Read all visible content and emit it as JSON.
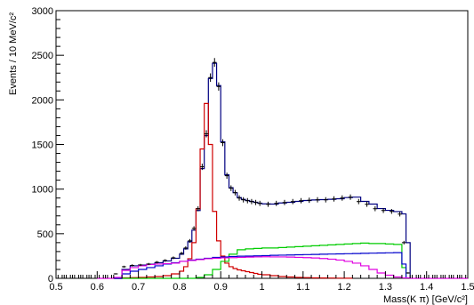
{
  "chart_data": {
    "type": "line",
    "title": "",
    "xlabel": "Mass(K π)  [GeV/c²]",
    "ylabel": "Events / 10 MeV/c²",
    "xlim": [
      0.5,
      1.5
    ],
    "ylim": [
      0,
      3000
    ],
    "x_ticks": [
      "0.5",
      "0.6",
      "0.7",
      "0.8",
      "0.9",
      "1",
      "1.1",
      "1.2",
      "1.3",
      "1.4",
      "1.5"
    ],
    "y_ticks": [
      "0",
      "500",
      "1000",
      "1500",
      "2000",
      "2500",
      "3000"
    ],
    "grid": false,
    "legend": "none",
    "data_points": {
      "x": [
        0.645,
        0.665,
        0.685,
        0.705,
        0.725,
        0.745,
        0.765,
        0.785,
        0.805,
        0.815,
        0.825,
        0.835,
        0.845,
        0.855,
        0.865,
        0.875,
        0.885,
        0.895,
        0.905,
        0.915,
        0.925,
        0.935,
        0.945,
        0.955,
        0.965,
        0.975,
        0.985,
        0.995,
        1.015,
        1.035,
        1.055,
        1.075,
        1.095,
        1.115,
        1.135,
        1.155,
        1.175,
        1.195,
        1.215,
        1.235,
        1.255,
        1.275,
        1.295,
        1.315,
        1.335,
        1.345,
        1.355
      ],
      "y": [
        50,
        130,
        145,
        150,
        160,
        180,
        200,
        230,
        280,
        340,
        420,
        560,
        780,
        1250,
        1620,
        2250,
        2420,
        2150,
        1520,
        1150,
        1010,
        960,
        900,
        880,
        870,
        860,
        850,
        840,
        830,
        840,
        850,
        860,
        870,
        875,
        880,
        880,
        890,
        900,
        910,
        860,
        830,
        780,
        760,
        750,
        720,
        400,
        60
      ]
    },
    "series": [
      {
        "color": "#000080",
        "x": [
          0.64,
          0.66,
          0.68,
          0.7,
          0.72,
          0.74,
          0.76,
          0.78,
          0.8,
          0.81,
          0.82,
          0.83,
          0.84,
          0.85,
          0.86,
          0.87,
          0.88,
          0.89,
          0.9,
          0.91,
          0.92,
          0.93,
          0.94,
          0.95,
          0.96,
          0.97,
          0.98,
          0.99,
          1.0,
          1.02,
          1.04,
          1.06,
          1.08,
          1.1,
          1.12,
          1.14,
          1.16,
          1.18,
          1.2,
          1.22,
          1.24,
          1.26,
          1.28,
          1.3,
          1.32,
          1.34,
          1.35,
          1.36
        ],
        "y": [
          0,
          100,
          140,
          148,
          158,
          175,
          195,
          225,
          270,
          330,
          410,
          540,
          760,
          1230,
          1600,
          2240,
          2410,
          2160,
          1530,
          1160,
          1015,
          960,
          905,
          885,
          872,
          862,
          852,
          842,
          835,
          832,
          845,
          852,
          862,
          872,
          878,
          882,
          886,
          892,
          905,
          910,
          862,
          832,
          782,
          762,
          748,
          722,
          400,
          0
        ]
      },
      {
        "color": "#d00000",
        "x": [
          0.64,
          0.66,
          0.68,
          0.7,
          0.72,
          0.74,
          0.76,
          0.78,
          0.8,
          0.81,
          0.82,
          0.83,
          0.84,
          0.85,
          0.86,
          0.87,
          0.88,
          0.89,
          0.9,
          0.91,
          0.92,
          0.93,
          0.94,
          0.95,
          0.96,
          0.97,
          0.98,
          0.99,
          1.0,
          1.02,
          1.04,
          1.06,
          1.08,
          1.1,
          1.12,
          1.14,
          1.16,
          1.18,
          1.2,
          1.22
        ],
        "y": [
          0,
          5,
          8,
          10,
          15,
          20,
          30,
          50,
          80,
          130,
          220,
          400,
          780,
          1450,
          1960,
          1500,
          750,
          420,
          250,
          170,
          130,
          110,
          95,
          85,
          75,
          65,
          55,
          45,
          40,
          30,
          20,
          15,
          10,
          8,
          5,
          4,
          3,
          2,
          1,
          0
        ]
      },
      {
        "color": "#00cc00",
        "x": [
          0.64,
          0.82,
          0.84,
          0.86,
          0.88,
          0.9,
          0.92,
          0.94,
          0.96,
          0.98,
          1.0,
          1.02,
          1.04,
          1.06,
          1.08,
          1.1,
          1.12,
          1.14,
          1.16,
          1.18,
          1.2,
          1.22,
          1.24,
          1.26,
          1.28,
          1.3,
          1.32,
          1.34,
          1.35
        ],
        "y": [
          0,
          0,
          10,
          40,
          100,
          190,
          270,
          320,
          330,
          335,
          340,
          340,
          345,
          350,
          355,
          360,
          365,
          370,
          375,
          380,
          385,
          390,
          395,
          390,
          390,
          385,
          380,
          120,
          0
        ]
      },
      {
        "color": "#0000cc",
        "x": [
          0.64,
          0.66,
          0.68,
          0.7,
          0.72,
          0.74,
          0.76,
          0.78,
          0.8,
          0.82,
          0.84,
          0.86,
          0.88,
          0.9,
          0.92,
          0.94,
          0.96,
          0.98,
          1.0,
          1.02,
          1.04,
          1.06,
          1.08,
          1.1,
          1.12,
          1.14,
          1.16,
          1.18,
          1.2,
          1.22,
          1.24,
          1.26,
          1.28,
          1.3,
          1.32,
          1.34,
          1.35
        ],
        "y": [
          0,
          50,
          80,
          100,
          120,
          140,
          160,
          175,
          190,
          205,
          215,
          225,
          235,
          240,
          245,
          248,
          250,
          252,
          255,
          258,
          260,
          262,
          264,
          266,
          268,
          270,
          272,
          274,
          276,
          278,
          280,
          282,
          284,
          286,
          288,
          160,
          0
        ]
      },
      {
        "color": "#e000e0",
        "x": [
          0.6,
          0.62,
          0.64,
          0.66,
          0.68,
          0.7,
          0.72,
          0.74,
          0.76,
          0.78,
          0.8,
          0.82,
          0.84,
          0.86,
          0.88,
          0.9,
          0.92,
          0.94,
          0.96,
          0.98,
          1.0,
          1.02,
          1.04,
          1.06,
          1.08,
          1.1,
          1.12,
          1.14,
          1.16,
          1.18,
          1.2,
          1.22,
          1.24,
          1.26,
          1.28,
          1.3,
          1.32,
          1.34,
          1.36,
          1.38,
          1.4,
          1.45,
          1.5
        ],
        "y": [
          0,
          0,
          10,
          90,
          120,
          140,
          155,
          160,
          165,
          170,
          190,
          200,
          210,
          220,
          225,
          230,
          232,
          235,
          238,
          240,
          242,
          240,
          240,
          238,
          235,
          232,
          228,
          222,
          215,
          205,
          190,
          170,
          140,
          100,
          60,
          35,
          15,
          5,
          0,
          0,
          0,
          0,
          0
        ]
      }
    ]
  }
}
